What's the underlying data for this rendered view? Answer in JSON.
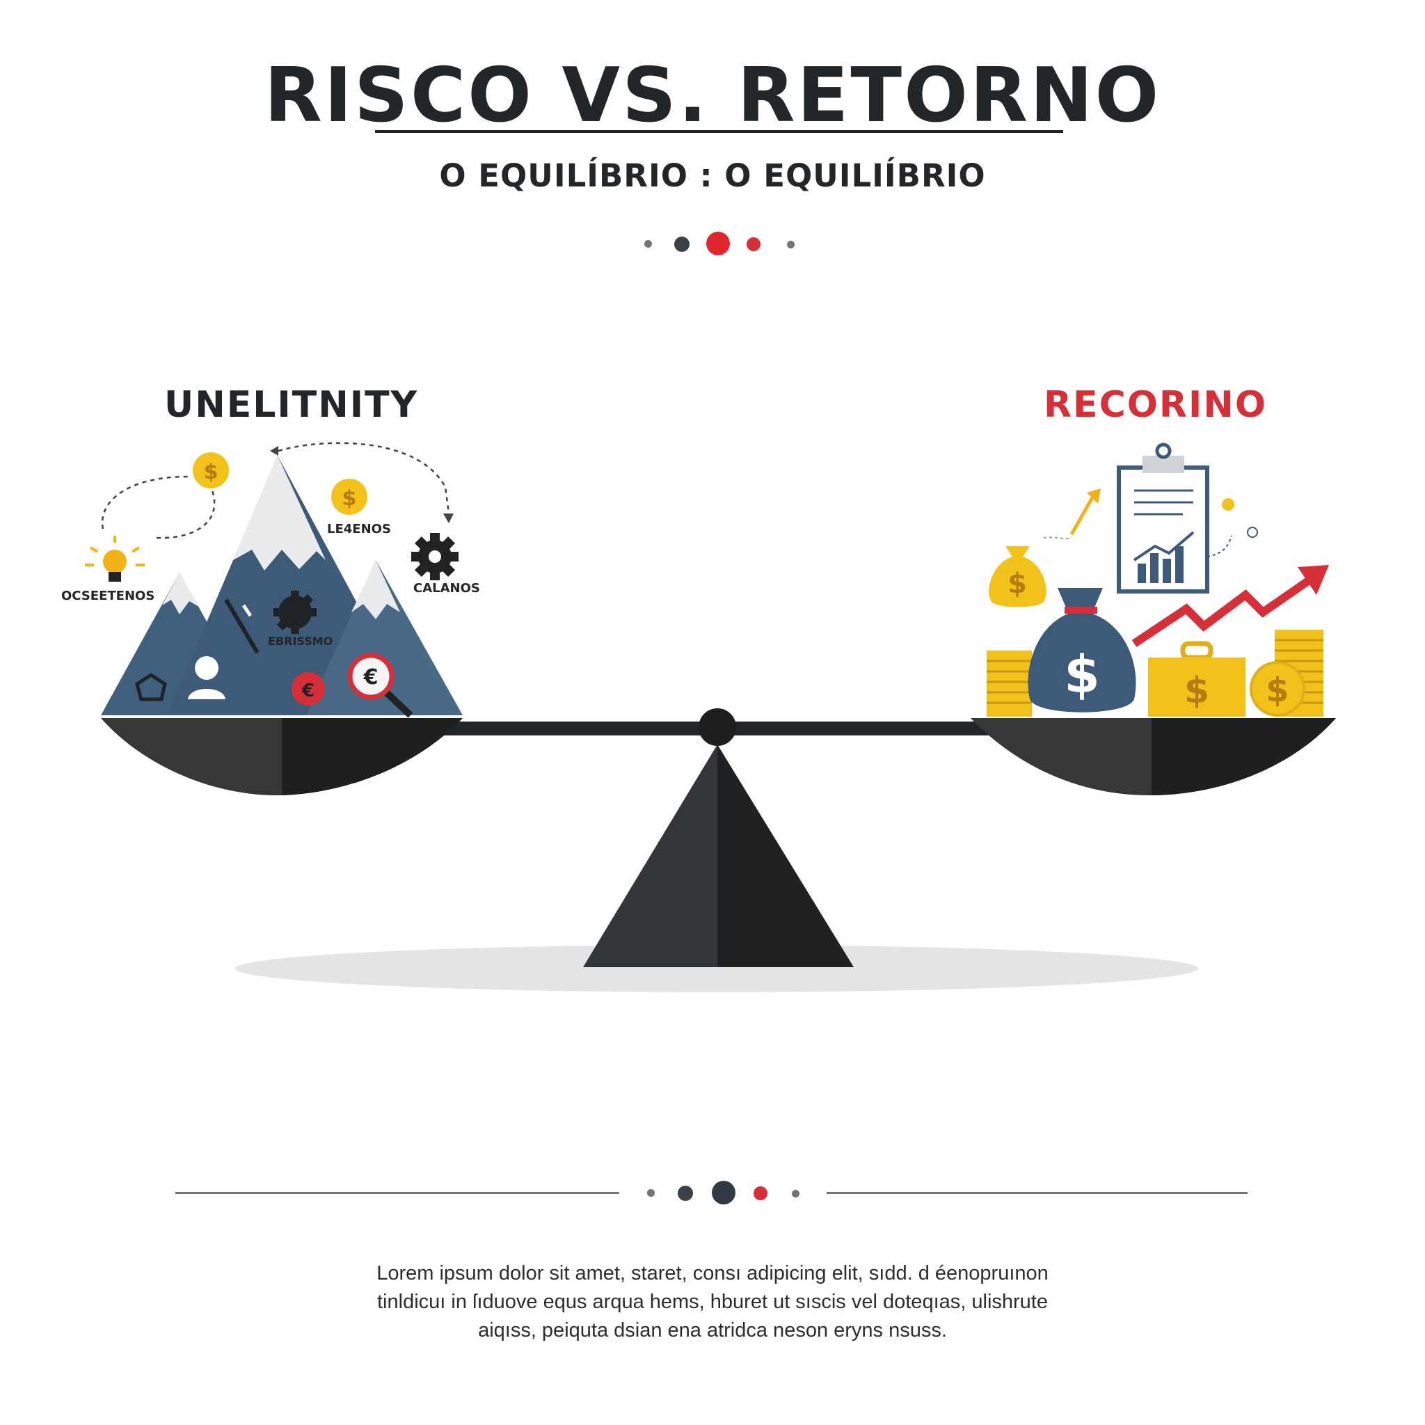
{
  "header": {
    "title": "RISCO VS. RETORNO",
    "subtitle": "O EQUILÍBRIO : O EQUILIÍBRIO"
  },
  "risk": {
    "title": "UNELITNITY",
    "labels": {
      "left": "OCSEETENOS",
      "top": "LE4ENOS",
      "right": "CALANOS",
      "center": "EBRISSMO"
    }
  },
  "return": {
    "title": "RECORINO"
  },
  "footer": {
    "paragraph_lines": [
      "Lorem ipsum dolor sit amet, staret, consı adipicing elit, sıdd. d éenopruınon",
      "tinldicuı in ſıduove equs arqua hems, hburet ut sıscis vel doteqıas, ulishrute",
      "aiqıss, peiquta dsian ena atridca neson eryns nsuss."
    ]
  },
  "colors": {
    "dark": "#222629",
    "red": "#d62f38",
    "slate": "#3d5a78",
    "gold": "#f2c21b",
    "gray": "#6e747a"
  },
  "icons": [
    "lightbulb-icon",
    "dollar-coin-icon",
    "gear-icon",
    "person-icon",
    "magnifier-icon",
    "money-bag-icon",
    "clipboard-chart-icon",
    "trend-arrow-icon",
    "briefcase-icon",
    "coin-stack-icon",
    "pentagon-icon"
  ]
}
